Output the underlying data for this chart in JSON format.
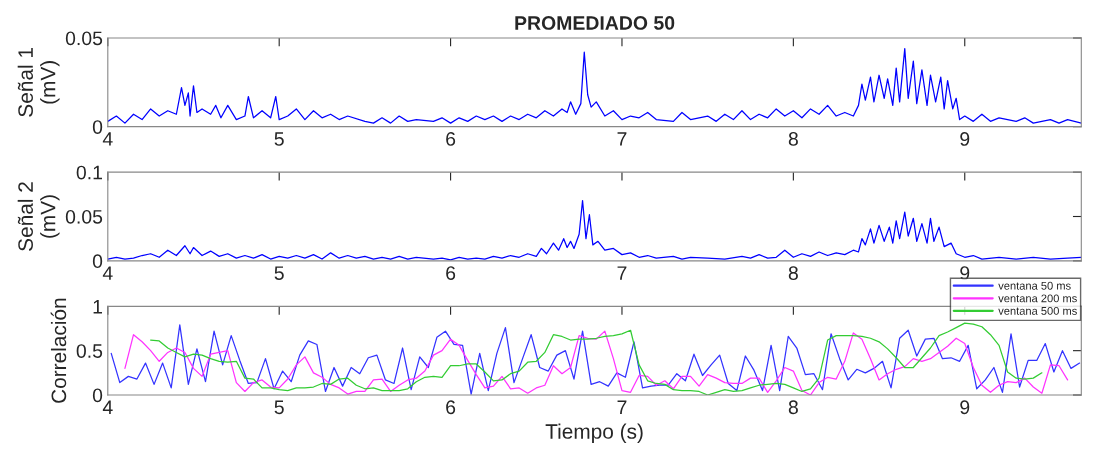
{
  "chart_data": [
    {
      "type": "line",
      "title": "PROMEDIADO 50",
      "ylabel": "Señal 1\n(mV)",
      "xlim": [
        4,
        9.68
      ],
      "xticks": [
        4,
        5,
        6,
        7,
        8,
        9
      ],
      "ylim": [
        0,
        0.05
      ],
      "yticks": [
        0,
        0.05
      ],
      "grid": false,
      "legend": false,
      "series": [
        {
          "color": "#0000ff",
          "x": [
            4.0,
            4.05,
            4.1,
            4.15,
            4.2,
            4.25,
            4.3,
            4.35,
            4.4,
            4.43,
            4.45,
            4.47,
            4.48,
            4.5,
            4.52,
            4.55,
            4.6,
            4.63,
            4.66,
            4.7,
            4.75,
            4.8,
            4.82,
            4.85,
            4.9,
            4.95,
            4.98,
            5.0,
            5.05,
            5.1,
            5.15,
            5.2,
            5.25,
            5.3,
            5.35,
            5.4,
            5.5,
            5.55,
            5.6,
            5.65,
            5.7,
            5.75,
            5.8,
            5.9,
            5.95,
            6.0,
            6.05,
            6.1,
            6.15,
            6.2,
            6.25,
            6.3,
            6.35,
            6.4,
            6.45,
            6.5,
            6.55,
            6.6,
            6.65,
            6.68,
            6.7,
            6.73,
            6.76,
            6.78,
            6.8,
            6.82,
            6.85,
            6.9,
            6.95,
            7.0,
            7.05,
            7.1,
            7.15,
            7.2,
            7.3,
            7.35,
            7.4,
            7.5,
            7.55,
            7.6,
            7.65,
            7.7,
            7.75,
            7.8,
            7.85,
            7.9,
            7.95,
            8.0,
            8.05,
            8.1,
            8.15,
            8.2,
            8.25,
            8.3,
            8.35,
            8.38,
            8.4,
            8.42,
            8.45,
            8.47,
            8.5,
            8.53,
            8.55,
            8.58,
            8.6,
            8.62,
            8.65,
            8.67,
            8.7,
            8.72,
            8.75,
            8.78,
            8.8,
            8.83,
            8.86,
            8.88,
            8.9,
            8.93,
            8.95,
            8.97,
            9.0,
            9.05,
            9.1,
            9.15,
            9.2,
            9.3,
            9.35,
            9.4,
            9.5,
            9.55,
            9.6,
            9.68
          ],
          "values": [
            0.003,
            0.006,
            0.002,
            0.007,
            0.004,
            0.01,
            0.006,
            0.009,
            0.007,
            0.022,
            0.012,
            0.019,
            0.006,
            0.023,
            0.008,
            0.01,
            0.007,
            0.012,
            0.005,
            0.012,
            0.004,
            0.006,
            0.017,
            0.005,
            0.009,
            0.005,
            0.017,
            0.004,
            0.006,
            0.01,
            0.004,
            0.009,
            0.005,
            0.007,
            0.004,
            0.006,
            0.003,
            0.002,
            0.005,
            0.002,
            0.006,
            0.003,
            0.004,
            0.003,
            0.005,
            0.002,
            0.005,
            0.003,
            0.006,
            0.004,
            0.006,
            0.003,
            0.006,
            0.004,
            0.007,
            0.005,
            0.009,
            0.006,
            0.01,
            0.008,
            0.014,
            0.007,
            0.013,
            0.042,
            0.018,
            0.011,
            0.014,
            0.006,
            0.009,
            0.004,
            0.006,
            0.005,
            0.008,
            0.004,
            0.003,
            0.008,
            0.004,
            0.006,
            0.003,
            0.007,
            0.004,
            0.009,
            0.004,
            0.007,
            0.005,
            0.01,
            0.006,
            0.009,
            0.005,
            0.01,
            0.007,
            0.012,
            0.006,
            0.008,
            0.006,
            0.012,
            0.024,
            0.015,
            0.028,
            0.014,
            0.029,
            0.016,
            0.027,
            0.012,
            0.033,
            0.014,
            0.044,
            0.016,
            0.037,
            0.013,
            0.032,
            0.012,
            0.029,
            0.014,
            0.028,
            0.01,
            0.026,
            0.01,
            0.016,
            0.004,
            0.006,
            0.003,
            0.007,
            0.003,
            0.005,
            0.003,
            0.005,
            0.002,
            0.004,
            0.002,
            0.004,
            0.002
          ]
        }
      ]
    },
    {
      "type": "line",
      "ylabel": "Señal 2\n(mV)",
      "xlim": [
        4,
        9.68
      ],
      "xticks": [
        4,
        5,
        6,
        7,
        8,
        9
      ],
      "ylim": [
        0,
        0.1
      ],
      "yticks": [
        0,
        0.05,
        0.1
      ],
      "grid": false,
      "legend": false,
      "series": [
        {
          "color": "#0000ff",
          "x": [
            4.0,
            4.05,
            4.1,
            4.15,
            4.2,
            4.25,
            4.3,
            4.35,
            4.4,
            4.45,
            4.48,
            4.5,
            4.55,
            4.6,
            4.65,
            4.7,
            4.75,
            4.8,
            4.85,
            4.9,
            4.95,
            5.0,
            5.05,
            5.1,
            5.15,
            5.2,
            5.25,
            5.3,
            5.35,
            5.4,
            5.45,
            5.5,
            5.55,
            5.6,
            5.65,
            5.7,
            5.75,
            5.8,
            5.9,
            5.95,
            6.0,
            6.05,
            6.1,
            6.15,
            6.2,
            6.25,
            6.3,
            6.35,
            6.4,
            6.45,
            6.5,
            6.53,
            6.56,
            6.6,
            6.63,
            6.66,
            6.68,
            6.7,
            6.72,
            6.75,
            6.77,
            6.79,
            6.81,
            6.83,
            6.86,
            6.9,
            6.95,
            7.0,
            7.05,
            7.1,
            7.15,
            7.2,
            7.3,
            7.35,
            7.4,
            7.5,
            7.6,
            7.7,
            7.75,
            7.8,
            7.85,
            7.9,
            7.95,
            8.0,
            8.05,
            8.1,
            8.15,
            8.2,
            8.25,
            8.3,
            8.35,
            8.38,
            8.4,
            8.42,
            8.45,
            8.47,
            8.5,
            8.53,
            8.56,
            8.58,
            8.6,
            8.62,
            8.65,
            8.67,
            8.7,
            8.72,
            8.75,
            8.78,
            8.8,
            8.82,
            8.85,
            8.88,
            8.92,
            8.95,
            9.0,
            9.05,
            9.1,
            9.2,
            9.3,
            9.4,
            9.5,
            9.6,
            9.68
          ],
          "values": [
            0.002,
            0.004,
            0.002,
            0.003,
            0.006,
            0.008,
            0.004,
            0.012,
            0.006,
            0.017,
            0.008,
            0.015,
            0.006,
            0.011,
            0.005,
            0.008,
            0.003,
            0.006,
            0.003,
            0.007,
            0.002,
            0.005,
            0.003,
            0.006,
            0.003,
            0.007,
            0.002,
            0.009,
            0.003,
            0.006,
            0.003,
            0.005,
            0.002,
            0.004,
            0.002,
            0.005,
            0.002,
            0.004,
            0.002,
            0.003,
            0.001,
            0.004,
            0.002,
            0.003,
            0.002,
            0.005,
            0.003,
            0.006,
            0.004,
            0.008,
            0.005,
            0.014,
            0.008,
            0.02,
            0.012,
            0.025,
            0.015,
            0.022,
            0.014,
            0.03,
            0.068,
            0.025,
            0.052,
            0.018,
            0.022,
            0.012,
            0.014,
            0.007,
            0.009,
            0.004,
            0.006,
            0.003,
            0.005,
            0.002,
            0.004,
            0.003,
            0.002,
            0.005,
            0.003,
            0.007,
            0.003,
            0.004,
            0.012,
            0.004,
            0.008,
            0.005,
            0.01,
            0.006,
            0.009,
            0.007,
            0.012,
            0.01,
            0.025,
            0.018,
            0.036,
            0.02,
            0.04,
            0.022,
            0.038,
            0.02,
            0.045,
            0.025,
            0.055,
            0.028,
            0.048,
            0.022,
            0.042,
            0.02,
            0.048,
            0.022,
            0.038,
            0.016,
            0.02,
            0.008,
            0.004,
            0.006,
            0.002,
            0.004,
            0.002,
            0.004,
            0.002,
            0.003,
            0.004
          ]
        }
      ]
    },
    {
      "type": "line",
      "ylabel": "Correlación",
      "xlabel": "Tiempo (s)",
      "xlim": [
        4,
        9.68
      ],
      "xticks": [
        4,
        5,
        6,
        7,
        8,
        9
      ],
      "ylim": [
        0,
        1
      ],
      "yticks": [
        0,
        0.5,
        1
      ],
      "grid": false,
      "legend": "top right",
      "series": [
        {
          "name": "ventana 50 ms",
          "color": "#3333ff",
          "x": [
            4.02,
            4.07,
            4.12,
            4.17,
            4.22,
            4.27,
            4.32,
            4.37,
            4.42,
            4.47,
            4.52,
            4.57,
            4.62,
            4.67,
            4.72,
            4.77,
            4.82,
            4.87,
            4.92,
            4.97,
            5.02,
            5.07,
            5.12,
            5.17,
            5.22,
            5.27,
            5.32,
            5.37,
            5.42,
            5.47,
            5.52,
            5.57,
            5.62,
            5.67,
            5.72,
            5.77,
            5.82,
            5.87,
            5.92,
            5.97,
            6.02,
            6.07,
            6.12,
            6.17,
            6.22,
            6.27,
            6.32,
            6.37,
            6.42,
            6.47,
            6.52,
            6.57,
            6.62,
            6.67,
            6.72,
            6.77,
            6.82,
            6.87,
            6.92,
            6.97,
            7.02,
            7.07,
            7.12,
            7.17,
            7.22,
            7.27,
            7.32,
            7.37,
            7.42,
            7.47,
            7.52,
            7.57,
            7.62,
            7.67,
            7.72,
            7.77,
            7.82,
            7.87,
            7.92,
            7.97,
            8.02,
            8.07,
            8.12,
            8.17,
            8.22,
            8.27,
            8.32,
            8.37,
            8.42,
            8.47,
            8.52,
            8.57,
            8.62,
            8.67,
            8.72,
            8.77,
            8.82,
            8.87,
            8.92,
            8.97,
            9.02,
            9.07,
            9.12,
            9.17,
            9.22,
            9.27,
            9.32,
            9.37,
            9.42,
            9.47,
            9.52,
            9.57,
            9.62,
            9.67
          ],
          "values": [
            0.47,
            0.14,
            0.21,
            0.18,
            0.36,
            0.12,
            0.36,
            0.08,
            0.79,
            0.12,
            0.52,
            0.15,
            0.72,
            0.34,
            0.67,
            0.39,
            0.13,
            0.14,
            0.41,
            0.07,
            0.27,
            0.15,
            0.45,
            0.61,
            0.57,
            0.04,
            0.31,
            0.1,
            0.31,
            0.24,
            0.42,
            0.45,
            0.17,
            0.13,
            0.53,
            0.06,
            0.43,
            0.31,
            0.65,
            0.72,
            0.57,
            0.56,
            0.01,
            0.47,
            0.05,
            0.47,
            0.76,
            0.14,
            0.41,
            0.68,
            0.31,
            0.27,
            0.45,
            0.5,
            0.18,
            0.72,
            0.12,
            0.15,
            0.1,
            0.25,
            0.2,
            0.6,
            0.08,
            0.1,
            0.11,
            0.11,
            0.24,
            0.16,
            0.46,
            0.22,
            0.34,
            0.45,
            0.13,
            0.05,
            0.44,
            0.28,
            0.05,
            0.56,
            0.05,
            0.66,
            0.53,
            0.23,
            0.24,
            0.06,
            0.69,
            0.41,
            0.17,
            0.29,
            0.25,
            0.3,
            0.38,
            0.08,
            0.64,
            0.73,
            0.44,
            0.63,
            0.64,
            0.41,
            0.42,
            0.38,
            0.56,
            0.07,
            0.17,
            0.31,
            0.03,
            0.69,
            0.09,
            0.39,
            0.39,
            0.58,
            0.26,
            0.5,
            0.3,
            0.36
          ]
        },
        {
          "name": "ventana 200 ms",
          "color": "#ff33ff",
          "x": [
            4.1,
            4.15,
            4.2,
            4.25,
            4.3,
            4.35,
            4.4,
            4.45,
            4.5,
            4.55,
            4.6,
            4.65,
            4.7,
            4.75,
            4.8,
            4.85,
            4.9,
            4.95,
            5.0,
            5.05,
            5.1,
            5.15,
            5.2,
            5.25,
            5.3,
            5.35,
            5.4,
            5.45,
            5.5,
            5.55,
            5.6,
            5.65,
            5.7,
            5.75,
            5.8,
            5.85,
            5.9,
            5.95,
            6.0,
            6.05,
            6.1,
            6.15,
            6.2,
            6.25,
            6.3,
            6.35,
            6.4,
            6.45,
            6.5,
            6.55,
            6.6,
            6.65,
            6.7,
            6.75,
            6.8,
            6.85,
            6.9,
            6.95,
            7.0,
            7.05,
            7.1,
            7.15,
            7.2,
            7.25,
            7.3,
            7.35,
            7.4,
            7.45,
            7.5,
            7.55,
            7.6,
            7.65,
            7.7,
            7.75,
            7.8,
            7.85,
            7.9,
            7.95,
            8.0,
            8.05,
            8.1,
            8.15,
            8.2,
            8.25,
            8.3,
            8.35,
            8.4,
            8.45,
            8.5,
            8.55,
            8.6,
            8.65,
            8.7,
            8.75,
            8.8,
            8.85,
            8.9,
            8.95,
            9.0,
            9.05,
            9.1,
            9.15,
            9.2,
            9.25,
            9.3,
            9.35,
            9.4,
            9.45,
            9.5,
            9.55,
            9.6
          ],
          "values": [
            0.3,
            0.68,
            0.6,
            0.5,
            0.38,
            0.48,
            0.53,
            0.48,
            0.3,
            0.21,
            0.46,
            0.48,
            0.5,
            0.14,
            0.04,
            0.14,
            0.17,
            0.09,
            0.08,
            0.18,
            0.34,
            0.43,
            0.25,
            0.2,
            0.12,
            0.08,
            0.01,
            0.04,
            0.04,
            0.17,
            0.18,
            0.04,
            0.11,
            0.17,
            0.19,
            0.27,
            0.45,
            0.5,
            0.63,
            0.56,
            0.39,
            0.23,
            0.08,
            0.1,
            0.21,
            0.07,
            0.08,
            0.02,
            0.08,
            0.11,
            0.33,
            0.24,
            0.31,
            0.67,
            0.64,
            0.63,
            0.72,
            0.41,
            0.05,
            0.03,
            0.22,
            0.21,
            0.11,
            0.16,
            0.07,
            0.21,
            0.21,
            0.1,
            0.23,
            0.19,
            0.14,
            0.13,
            0.13,
            0.19,
            0.19,
            0.03,
            0.16,
            0.31,
            0.27,
            0.05,
            0.0,
            0.14,
            0.2,
            0.18,
            0.38,
            0.7,
            0.63,
            0.41,
            0.17,
            0.24,
            0.29,
            0.32,
            0.41,
            0.38,
            0.41,
            0.48,
            0.55,
            0.64,
            0.58,
            0.31,
            0.11,
            0.03,
            0.11,
            0.15,
            0.14,
            0.19,
            0.09,
            0.02,
            0.34,
            0.33,
            0.17
          ]
        },
        {
          "name": "ventana 500 ms",
          "color": "#33cc33",
          "x": [
            4.25,
            4.3,
            4.35,
            4.4,
            4.45,
            4.5,
            4.55,
            4.6,
            4.65,
            4.7,
            4.75,
            4.8,
            4.85,
            4.9,
            4.95,
            5.0,
            5.05,
            5.1,
            5.15,
            5.2,
            5.25,
            5.3,
            5.35,
            5.4,
            5.45,
            5.5,
            5.55,
            5.6,
            5.65,
            5.7,
            5.75,
            5.8,
            5.85,
            5.9,
            5.95,
            6.0,
            6.05,
            6.1,
            6.15,
            6.2,
            6.25,
            6.3,
            6.35,
            6.4,
            6.45,
            6.5,
            6.55,
            6.6,
            6.65,
            6.7,
            6.75,
            6.8,
            6.85,
            6.9,
            6.95,
            7.0,
            7.05,
            7.1,
            7.15,
            7.2,
            7.25,
            7.3,
            7.35,
            7.4,
            7.45,
            7.5,
            7.55,
            7.6,
            7.65,
            7.7,
            7.75,
            7.8,
            7.85,
            7.9,
            7.95,
            8.0,
            8.05,
            8.1,
            8.15,
            8.2,
            8.25,
            8.3,
            8.35,
            8.4,
            8.45,
            8.5,
            8.55,
            8.6,
            8.65,
            8.7,
            8.75,
            8.8,
            8.85,
            8.9,
            8.95,
            9.0,
            9.05,
            9.1,
            9.15,
            9.2,
            9.25,
            9.3,
            9.35,
            9.4,
            9.45
          ],
          "values": [
            0.62,
            0.61,
            0.53,
            0.48,
            0.43,
            0.46,
            0.45,
            0.41,
            0.38,
            0.37,
            0.38,
            0.19,
            0.18,
            0.08,
            0.08,
            0.06,
            0.05,
            0.08,
            0.08,
            0.09,
            0.13,
            0.12,
            0.18,
            0.19,
            0.11,
            0.07,
            0.08,
            0.05,
            0.05,
            0.05,
            0.07,
            0.15,
            0.2,
            0.21,
            0.2,
            0.33,
            0.33,
            0.35,
            0.35,
            0.26,
            0.16,
            0.17,
            0.24,
            0.27,
            0.37,
            0.38,
            0.48,
            0.68,
            0.66,
            0.62,
            0.63,
            0.63,
            0.64,
            0.66,
            0.67,
            0.69,
            0.73,
            0.34,
            0.16,
            0.13,
            0.12,
            0.06,
            0.05,
            0.05,
            0.04,
            0.0,
            0.03,
            0.06,
            0.04,
            0.05,
            0.08,
            0.11,
            0.12,
            0.13,
            0.12,
            0.08,
            0.04,
            0.07,
            0.19,
            0.62,
            0.67,
            0.67,
            0.67,
            0.66,
            0.64,
            0.6,
            0.52,
            0.42,
            0.31,
            0.31,
            0.42,
            0.53,
            0.67,
            0.71,
            0.76,
            0.81,
            0.8,
            0.77,
            0.68,
            0.56,
            0.26,
            0.19,
            0.18,
            0.19,
            0.25
          ]
        }
      ]
    }
  ]
}
